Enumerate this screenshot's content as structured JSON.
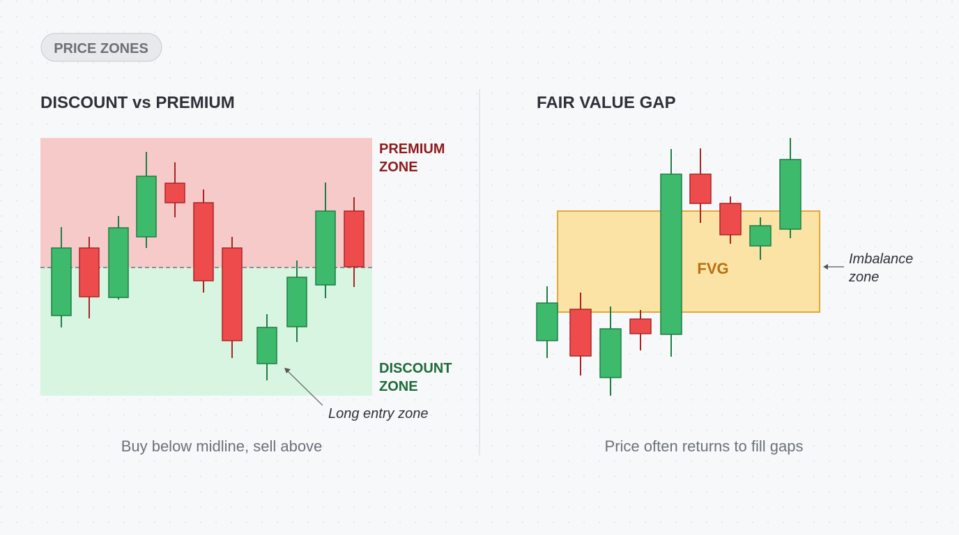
{
  "badge": "PRICE ZONES",
  "left": {
    "title": "DISCOUNT vs PREMIUM",
    "premium_label": [
      "PREMIUM",
      "ZONE"
    ],
    "discount_label": [
      "DISCOUNT",
      "ZONE"
    ],
    "annotation": "Long entry zone",
    "caption": "Buy below midline, sell above"
  },
  "right": {
    "title": "FAIR VALUE GAP",
    "box_label": "FVG",
    "annotation": [
      "Imbalance",
      "zone"
    ],
    "caption": "Price often returns to fill gaps"
  }
}
